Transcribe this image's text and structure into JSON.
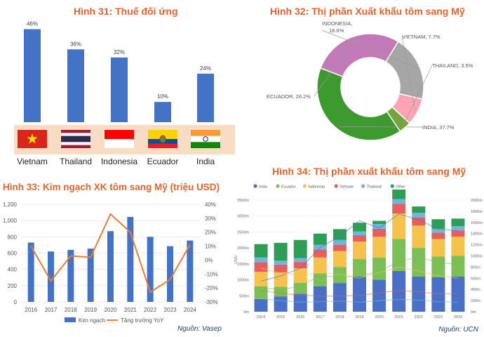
{
  "fig31": {
    "title": "Hình 31: Thuế đối ứng",
    "chart_data": {
      "type": "bar",
      "categories": [
        "Vietnam",
        "Thailand",
        "Indonesia",
        "Ecuador",
        "India"
      ],
      "values": [
        46,
        36,
        32,
        10,
        24
      ],
      "value_labels": [
        "46%",
        "36%",
        "32%",
        "10%",
        "24%"
      ],
      "bar_color": "#4472c4",
      "ylim": [
        0,
        50
      ]
    }
  },
  "fig32": {
    "title": "Hình 32: Thị phần Xuất khẩu tôm sang Mỹ",
    "chart_data": {
      "type": "pie",
      "slices": [
        {
          "name": "INDIA",
          "value": 37.7,
          "label": "INDIA, 37.7%",
          "color": "#3c9a2e"
        },
        {
          "name": "ECUADOR",
          "value": 26.2,
          "label": "ECUADOR, 26.2%",
          "color": "#c17ab7"
        },
        {
          "name": "INDONESIA",
          "value": 18.6,
          "label": "INDONESIA, 18.6%",
          "color": "#a6a6a6"
        },
        {
          "name": "VIETNAM",
          "value": 7.7,
          "label": "VIETNAM, 7.7%",
          "color": "#ffa3b5"
        },
        {
          "name": "THAILAND",
          "value": 3.5,
          "label": "THAILAND, 3.5%",
          "color": "#76a33f"
        }
      ]
    }
  },
  "fig33": {
    "title": "Hình 33: Kim ngạch XK tôm sang Mỹ (triệu USD)",
    "source": "Nguồn: Vasep",
    "chart_data": {
      "type": "bar",
      "categories": [
        "2016",
        "2017",
        "2018",
        "2019",
        "2020",
        "2021",
        "2022",
        "2023",
        "2024"
      ],
      "series": [
        {
          "name": "Kim ngạch",
          "type": "bar",
          "axis": "left",
          "color": "#4472c4",
          "values": [
            730,
            620,
            640,
            655,
            870,
            1045,
            800,
            685,
            755
          ]
        },
        {
          "name": "Tăng trưởng YoY",
          "type": "line",
          "axis": "right",
          "color": "#ed7d31",
          "values": [
            10,
            -15,
            3,
            2,
            33,
            20,
            -23,
            -14,
            11
          ]
        }
      ],
      "ylim_left": [
        0,
        1200
      ],
      "yticks_left": [
        "0",
        "200",
        "400",
        "600",
        "800",
        "1,000",
        "1,200"
      ],
      "ylim_right": [
        -30,
        40
      ],
      "yticks_right": [
        "-30%",
        "-20%",
        "-10%",
        "0%",
        "10%",
        "20%",
        "30%",
        "40%"
      ]
    }
  },
  "fig34": {
    "title": "Hình 34: Thị phần xuất khẩu tôm sang Mỹ",
    "source": "Nguồn: UCN",
    "chart_data": {
      "type": "bar",
      "stacked": true,
      "categories": [
        "2014",
        "2015",
        "2016",
        "2017",
        "2018",
        "2019",
        "2020",
        "2021",
        "2022",
        "2023",
        "2024"
      ],
      "ylabel": "USD",
      "yticks_left": [
        "0m",
        "500m",
        "1000m",
        "1500m",
        "2000m",
        "2500m",
        "3000m",
        "3500m"
      ],
      "ylim_left": [
        0,
        3500
      ],
      "yticks_right": [
        "0m",
        "200m",
        "400m",
        "600m",
        "800m",
        "1000m",
        "1200m",
        "1400m",
        "1600m",
        "1800m",
        "2000m"
      ],
      "ylim_right": [
        0,
        2000
      ],
      "series": [
        {
          "name": "India",
          "color": "#4a6fc7",
          "values": [
            400,
            480,
            560,
            800,
            900,
            1100,
            1000,
            1280,
            1100,
            1080,
            1100
          ]
        },
        {
          "name": "Ecuador",
          "color": "#7cbf56",
          "values": [
            400,
            300,
            350,
            400,
            500,
            550,
            700,
            1000,
            900,
            650,
            650
          ]
        },
        {
          "name": "Indonesia",
          "color": "#f5c24c",
          "values": [
            450,
            450,
            450,
            500,
            500,
            550,
            650,
            800,
            700,
            550,
            600
          ]
        },
        {
          "name": "Vietnam",
          "color": "#e85d5d",
          "values": [
            300,
            250,
            200,
            250,
            200,
            200,
            250,
            300,
            250,
            200,
            200
          ]
        },
        {
          "name": "Thailand",
          "color": "#6cb6e0",
          "values": [
            150,
            120,
            120,
            150,
            150,
            120,
            150,
            150,
            150,
            120,
            130
          ]
        },
        {
          "name": "Other",
          "color": "#2e9e57",
          "values": [
            420,
            560,
            570,
            350,
            340,
            270,
            100,
            300,
            200,
            300,
            240
          ]
        }
      ]
    }
  }
}
